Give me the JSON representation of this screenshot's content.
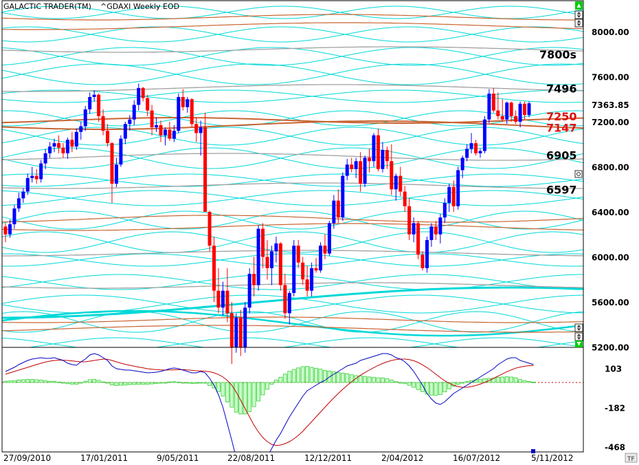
{
  "header": {
    "app_title": "GALACTIC TRADER(TM)",
    "chart_title": "^GDAXI Weekly EOD"
  },
  "corner_badge": "TF",
  "colors": {
    "up_candle": "#0000ff",
    "down_candle": "#ff0000",
    "cyan_wave": "#00d8d8",
    "orange_wave": "#c86432",
    "gray_wave": "#a0a0a0",
    "macd_line": "#0000c0",
    "signal_line": "#c00000",
    "histogram": "#55ee55",
    "scroll_button": "#00cc00"
  },
  "chart_data": [
    {
      "type": "candlestick",
      "title": "^GDAXI Weekly EOD",
      "y_ticks": [
        "8000.00",
        "7600.00",
        "7200.00",
        "6800.00",
        "6400.00",
        "6000.00",
        "5600.00",
        "5200.00"
      ],
      "y_tick_values": [
        8000,
        7600,
        7200,
        6800,
        6400,
        6000,
        5600,
        5200
      ],
      "ylim": [
        5200,
        8330
      ],
      "x_ticks": [
        "27/09/2010",
        "17/01/2011",
        "9/05/2011",
        "22/08/2011",
        "12/12/2011",
        "2/04/2012",
        "16/07/2012",
        "5/11/2012"
      ],
      "last_price": "7363.85",
      "level_labels": [
        {
          "text": "7800s",
          "value": 7800,
          "color": "#000000"
        },
        {
          "text": "7496",
          "value": 7496,
          "color": "#000000"
        },
        {
          "text": "7250",
          "value": 7250,
          "color": "#e01010"
        },
        {
          "text": "7147",
          "value": 7147,
          "color": "#e01010"
        },
        {
          "text": "6905",
          "value": 6905,
          "color": "#000000"
        },
        {
          "text": "6597",
          "value": 6597,
          "color": "#000000"
        }
      ],
      "candles": [
        [
          6270,
          6300,
          6130,
          6200
        ],
        [
          6200,
          6330,
          6170,
          6290
        ],
        [
          6290,
          6460,
          6250,
          6430
        ],
        [
          6430,
          6570,
          6400,
          6520
        ],
        [
          6520,
          6610,
          6480,
          6580
        ],
        [
          6580,
          6740,
          6550,
          6700
        ],
        [
          6700,
          6800,
          6660,
          6720
        ],
        [
          6720,
          6780,
          6650,
          6690
        ],
        [
          6690,
          6860,
          6660,
          6830
        ],
        [
          6830,
          6960,
          6780,
          6920
        ],
        [
          6920,
          7020,
          6880,
          6980
        ],
        [
          6980,
          7050,
          6930,
          7010
        ],
        [
          7010,
          7080,
          6920,
          6970
        ],
        [
          6970,
          7010,
          6880,
          6920
        ],
        [
          6920,
          7060,
          6870,
          7040
        ],
        [
          7040,
          7110,
          6930,
          6980
        ],
        [
          6980,
          7140,
          6950,
          7110
        ],
        [
          7110,
          7200,
          7040,
          7160
        ],
        [
          7160,
          7340,
          7120,
          7310
        ],
        [
          7310,
          7460,
          7270,
          7420
        ],
        [
          7420,
          7480,
          7380,
          7440
        ],
        [
          7440,
          7450,
          7200,
          7250
        ],
        [
          7250,
          7310,
          7080,
          7120
        ],
        [
          7120,
          7180,
          6980,
          7010
        ],
        [
          7010,
          7020,
          6480,
          6650
        ],
        [
          6650,
          6880,
          6620,
          6820
        ],
        [
          6820,
          7080,
          6800,
          7050
        ],
        [
          7050,
          7200,
          7000,
          7180
        ],
        [
          7180,
          7260,
          7120,
          7220
        ],
        [
          7220,
          7390,
          7170,
          7350
        ],
        [
          7350,
          7540,
          7300,
          7500
        ],
        [
          7500,
          7510,
          7380,
          7410
        ],
        [
          7410,
          7440,
          7250,
          7300
        ],
        [
          7300,
          7350,
          7080,
          7150
        ],
        [
          7150,
          7240,
          7110,
          7170
        ],
        [
          7170,
          7210,
          7020,
          7080
        ],
        [
          7080,
          7150,
          6990,
          7130
        ],
        [
          7130,
          7200,
          7030,
          7050
        ],
        [
          7050,
          7170,
          7020,
          7120
        ],
        [
          7120,
          7450,
          7100,
          7420
        ],
        [
          7420,
          7490,
          7300,
          7330
        ],
        [
          7330,
          7420,
          7280,
          7400
        ],
        [
          7400,
          7410,
          7150,
          7180
        ],
        [
          7180,
          7240,
          7020,
          7100
        ],
        [
          7100,
          7210,
          6900,
          7150
        ],
        [
          7150,
          7280,
          6400,
          6400
        ],
        [
          6400,
          6410,
          6050,
          6100
        ],
        [
          6100,
          6180,
          5600,
          5700
        ],
        [
          5700,
          5900,
          5500,
          5550
        ],
        [
          5550,
          5780,
          5480,
          5700
        ],
        [
          5700,
          5900,
          5420,
          5500
        ],
        [
          5500,
          5600,
          5050,
          5200
        ],
        [
          5200,
          5500,
          5150,
          5460
        ],
        [
          5460,
          5530,
          5120,
          5200
        ],
        [
          5200,
          5600,
          5150,
          5550
        ],
        [
          5550,
          5900,
          5500,
          5850
        ],
        [
          5850,
          6000,
          5650,
          5750
        ],
        [
          5750,
          6280,
          5700,
          6250
        ],
        [
          6250,
          6300,
          5900,
          6000
        ],
        [
          6000,
          6150,
          5800,
          5900
        ],
        [
          5900,
          6100,
          5750,
          6050
        ],
        [
          6050,
          6180,
          5950,
          6120
        ],
        [
          6120,
          6130,
          5700,
          5750
        ],
        [
          5750,
          5850,
          5450,
          5500
        ],
        [
          5500,
          5700,
          5400,
          5680
        ],
        [
          5680,
          6150,
          5650,
          6100
        ],
        [
          6100,
          6150,
          5900,
          5950
        ],
        [
          5950,
          6000,
          5750,
          5800
        ],
        [
          5800,
          5920,
          5650,
          5700
        ],
        [
          5700,
          5950,
          5650,
          5900
        ],
        [
          5900,
          5990,
          5860,
          5880
        ],
        [
          5880,
          6130,
          5860,
          6100
        ],
        [
          6100,
          6200,
          5980,
          6030
        ],
        [
          6030,
          6320,
          6010,
          6300
        ],
        [
          6300,
          6550,
          6250,
          6500
        ],
        [
          6500,
          6600,
          6300,
          6350
        ],
        [
          6350,
          6750,
          6320,
          6720
        ],
        [
          6720,
          6870,
          6680,
          6820
        ],
        [
          6820,
          6880,
          6750,
          6780
        ],
        [
          6780,
          6880,
          6700,
          6850
        ],
        [
          6850,
          6930,
          6580,
          6650
        ],
        [
          6650,
          6900,
          6620,
          6880
        ],
        [
          6880,
          6960,
          6750,
          6850
        ],
        [
          6850,
          7100,
          6800,
          7080
        ],
        [
          7080,
          7140,
          6760,
          6780
        ],
        [
          6780,
          7020,
          6750,
          6950
        ],
        [
          6950,
          6980,
          6780,
          6850
        ],
        [
          6850,
          7000,
          6550,
          6600
        ],
        [
          6600,
          6740,
          6500,
          6720
        ],
        [
          6720,
          6800,
          6540,
          6580
        ],
        [
          6580,
          6630,
          6400,
          6450
        ],
        [
          6450,
          6520,
          6150,
          6200
        ],
        [
          6200,
          6350,
          6130,
          6300
        ],
        [
          6300,
          6320,
          5980,
          6020
        ],
        [
          6020,
          6050,
          5880,
          5900
        ],
        [
          5900,
          6180,
          5860,
          6150
        ],
        [
          6150,
          6300,
          6090,
          6270
        ],
        [
          6270,
          6320,
          6150,
          6200
        ],
        [
          6200,
          6380,
          6120,
          6350
        ],
        [
          6350,
          6520,
          6300,
          6480
        ],
        [
          6480,
          6650,
          6400,
          6620
        ],
        [
          6620,
          6680,
          6400,
          6450
        ],
        [
          6450,
          6800,
          6420,
          6770
        ],
        [
          6770,
          6900,
          6700,
          6880
        ],
        [
          6880,
          7000,
          6850,
          6960
        ],
        [
          6960,
          7100,
          6920,
          7010
        ],
        [
          7010,
          7040,
          6900,
          6920
        ],
        [
          6920,
          6960,
          6880,
          6940
        ],
        [
          6940,
          7250,
          6920,
          7220
        ],
        [
          7220,
          7490,
          7190,
          7450
        ],
        [
          7450,
          7500,
          7280,
          7300
        ],
        [
          7300,
          7460,
          7220,
          7250
        ],
        [
          7250,
          7400,
          7200,
          7220
        ],
        [
          7220,
          7380,
          7180,
          7370
        ],
        [
          7370,
          7380,
          7200,
          7250
        ],
        [
          7250,
          7300,
          7180,
          7200
        ],
        [
          7200,
          7380,
          7150,
          7360
        ],
        [
          7360,
          7380,
          7220,
          7260
        ],
        [
          7260,
          7380,
          7240,
          7363.85
        ]
      ]
    },
    {
      "type": "macd",
      "y_ticks": [
        "103",
        "-182",
        "-468"
      ],
      "y_tick_values": [
        103,
        -182,
        -468
      ],
      "ylim": [
        -740,
        250
      ],
      "zero_line": 0,
      "macd": [
        80,
        95,
        110,
        130,
        145,
        160,
        170,
        175,
        180,
        175,
        175,
        180,
        170,
        160,
        140,
        130,
        125,
        150,
        170,
        200,
        210,
        200,
        180,
        160,
        120,
        100,
        95,
        90,
        90,
        85,
        80,
        75,
        70,
        72,
        75,
        80,
        90,
        100,
        105,
        100,
        90,
        80,
        70,
        70,
        80,
        70,
        30,
        -20,
        -90,
        -180,
        -300,
        -420,
        -550,
        -640,
        -700,
        -720,
        -700,
        -660,
        -600,
        -540,
        -480,
        -420,
        -370,
        -310,
        -250,
        -200,
        -150,
        -100,
        -60,
        -40,
        -20,
        0,
        15,
        40,
        60,
        80,
        100,
        120,
        130,
        140,
        160,
        170,
        180,
        190,
        200,
        210,
        210,
        200,
        180,
        170,
        150,
        120,
        80,
        30,
        -20,
        -80,
        -120,
        -150,
        -160,
        -140,
        -110,
        -80,
        -60,
        -40,
        -20,
        0,
        20,
        40,
        60,
        80,
        100,
        130,
        150,
        170,
        180,
        180,
        160,
        150,
        140,
        130
      ],
      "signal": [
        60,
        70,
        80,
        90,
        100,
        110,
        120,
        130,
        140,
        148,
        155,
        160,
        162,
        162,
        160,
        157,
        153,
        150,
        150,
        155,
        160,
        165,
        170,
        168,
        160,
        150,
        140,
        132,
        125,
        118,
        112,
        106,
        100,
        96,
        93,
        91,
        90,
        91,
        92,
        93,
        93,
        91,
        88,
        85,
        84,
        82,
        78,
        70,
        58,
        40,
        15,
        -20,
        -70,
        -130,
        -190,
        -250,
        -310,
        -360,
        -400,
        -430,
        -450,
        -458,
        -455,
        -445,
        -430,
        -410,
        -385,
        -355,
        -320,
        -285,
        -250,
        -215,
        -180,
        -145,
        -112,
        -80,
        -50,
        -22,
        5,
        30,
        52,
        72,
        90,
        108,
        124,
        138,
        150,
        160,
        166,
        170,
        170,
        166,
        158,
        145,
        128,
        108,
        85,
        60,
        35,
        12,
        -6,
        -20,
        -30,
        -35,
        -35,
        -30,
        -22,
        -12,
        0,
        14,
        30,
        46,
        62,
        78,
        92,
        104,
        112,
        118,
        122,
        124
      ],
      "histogram": [
        20,
        25,
        30,
        40,
        45,
        50,
        50,
        45,
        40,
        27,
        20,
        20,
        8,
        -2,
        -20,
        -27,
        -28,
        0,
        20,
        45,
        50,
        35,
        10,
        -8,
        -40,
        -50,
        -45,
        -42,
        -35,
        -33,
        -32,
        -31,
        -30,
        -24,
        -18,
        -11,
        0,
        9,
        13,
        7,
        -3,
        -11,
        -18,
        -15,
        -4,
        -12,
        -48,
        -90,
        -148,
        -220,
        -315,
        -400,
        -480,
        -510,
        -510,
        -470,
        -390,
        -300,
        -200,
        -110,
        -30,
        38,
        85,
        135,
        180,
        210,
        235,
        255,
        260,
        245,
        230,
        215,
        195,
        185,
        172,
        160,
        150,
        142,
        125,
        110,
        108,
        98,
        90,
        82,
        76,
        72,
        60,
        40,
        14,
        0,
        -20,
        -46,
        -78,
        -115,
        -148,
        -188,
        -205,
        -210,
        -195,
        -152,
        -104,
        -60,
        -30,
        -5,
        15,
        30,
        42,
        52,
        60,
        66,
        70,
        84,
        88,
        92,
        88,
        76,
        48,
        32,
        18,
        6
      ]
    }
  ]
}
